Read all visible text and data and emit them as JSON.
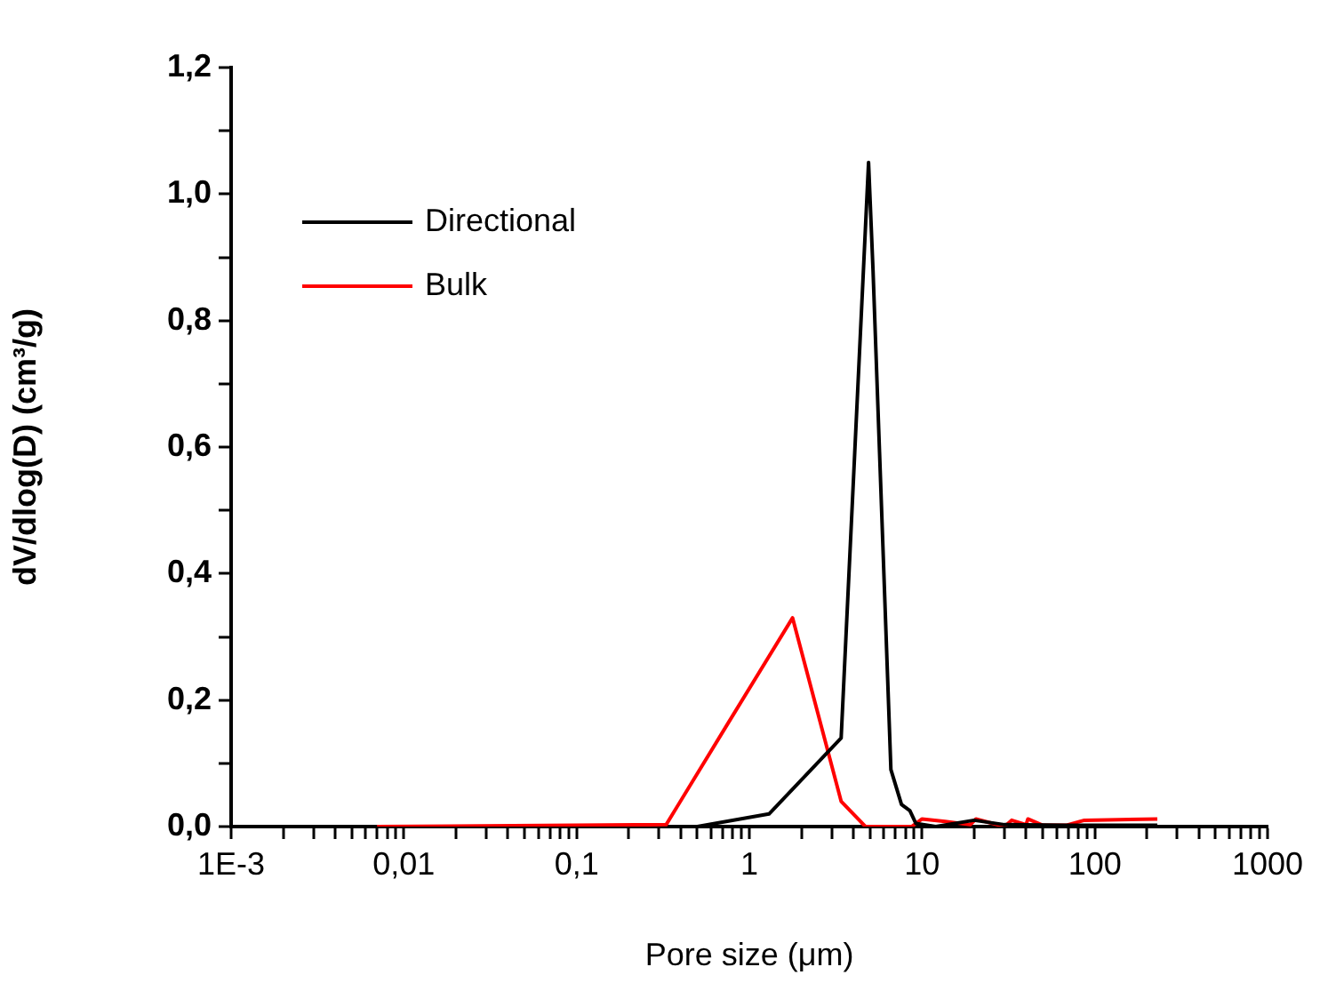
{
  "chart_data": {
    "type": "line",
    "xlabel": "Pore size (μm)",
    "ylabel": "dV/dlog(D) (cm³/g)",
    "log": "x",
    "legend": "top left",
    "grid": false,
    "marker": "none",
    "line_style": "solid",
    "xlim": [
      0.001,
      1000
    ],
    "xticks": [
      {
        "value": 0.001,
        "label": "1E-3"
      },
      {
        "value": 0.002,
        "label": null
      },
      {
        "value": 0.003,
        "label": null
      },
      {
        "value": 0.004,
        "label": null
      },
      {
        "value": 0.005,
        "label": null
      },
      {
        "value": 0.006,
        "label": null
      },
      {
        "value": 0.007,
        "label": null
      },
      {
        "value": 0.008,
        "label": null
      },
      {
        "value": 0.009,
        "label": null
      },
      {
        "value": 0.01,
        "label": "0,01"
      },
      {
        "value": 0.02,
        "label": null
      },
      {
        "value": 0.03,
        "label": null
      },
      {
        "value": 0.04,
        "label": null
      },
      {
        "value": 0.05,
        "label": null
      },
      {
        "value": 0.06,
        "label": null
      },
      {
        "value": 0.07,
        "label": null
      },
      {
        "value": 0.08,
        "label": null
      },
      {
        "value": 0.09,
        "label": null
      },
      {
        "value": 0.1,
        "label": "0,1"
      },
      {
        "value": 0.2,
        "label": null
      },
      {
        "value": 0.3,
        "label": null
      },
      {
        "value": 0.4,
        "label": null
      },
      {
        "value": 0.5,
        "label": null
      },
      {
        "value": 0.6,
        "label": null
      },
      {
        "value": 0.7,
        "label": null
      },
      {
        "value": 0.8,
        "label": null
      },
      {
        "value": 0.9,
        "label": null
      },
      1,
      {
        "value": 2,
        "label": null
      },
      {
        "value": 3,
        "label": null
      },
      {
        "value": 4,
        "label": null
      },
      {
        "value": 5,
        "label": null
      },
      {
        "value": 6,
        "label": null
      },
      {
        "value": 7,
        "label": null
      },
      {
        "value": 8,
        "label": null
      },
      {
        "value": 9,
        "label": null
      },
      10,
      {
        "value": 20,
        "label": null
      },
      {
        "value": 30,
        "label": null
      },
      {
        "value": 40,
        "label": null
      },
      {
        "value": 50,
        "label": null
      },
      {
        "value": 60,
        "label": null
      },
      {
        "value": 70,
        "label": null
      },
      {
        "value": 80,
        "label": null
      },
      {
        "value": 90,
        "label": null
      },
      100,
      {
        "value": 200,
        "label": null
      },
      {
        "value": 300,
        "label": null
      },
      {
        "value": 400,
        "label": null
      },
      {
        "value": 500,
        "label": null
      },
      {
        "value": 600,
        "label": null
      },
      {
        "value": 700,
        "label": null
      },
      {
        "value": 800,
        "label": null
      },
      {
        "value": 900,
        "label": null
      },
      1000
    ],
    "ylim": [
      0,
      1.2
    ],
    "yticks": [
      {
        "value": 0,
        "label": "0,0"
      },
      {
        "value": 0.1,
        "label": null
      },
      {
        "value": 0.2,
        "label": "0,2"
      },
      {
        "value": 0.3,
        "label": null
      },
      {
        "value": 0.4,
        "label": "0,4"
      },
      {
        "value": 0.5,
        "label": null
      },
      {
        "value": 0.6,
        "label": "0,6"
      },
      {
        "value": 0.7,
        "label": null
      },
      {
        "value": 0.8,
        "label": "0,8"
      },
      {
        "value": 0.9,
        "label": null
      },
      {
        "value": 1,
        "label": "1,0"
      },
      {
        "value": 1.1,
        "label": null
      },
      {
        "value": 1.2,
        "label": "1,2"
      }
    ],
    "series": [
      {
        "name": "Directional",
        "color": "#000000",
        "x": [
          0.5,
          1.3,
          3.4,
          4.9,
          5.2,
          6.6,
          7.6,
          8.5,
          9.2,
          12,
          20,
          30,
          68,
          230
        ],
        "values": [
          0,
          0.02,
          0.14,
          1.05,
          0.88,
          0.09,
          0.035,
          0.025,
          0.005,
          0,
          0.01,
          0.003,
          0.002,
          0.002
        ]
      },
      {
        "name": "Bulk",
        "color": "#ff0000",
        "x": [
          0.007,
          0.33,
          0.74,
          1.78,
          3.4,
          4.7,
          8.7,
          10,
          13.6,
          19,
          20.5,
          30,
          33,
          40,
          41,
          50,
          68,
          87,
          230
        ],
        "values": [
          0,
          0.003,
          0.16,
          0.33,
          0.04,
          0,
          0,
          0.012,
          0.008,
          0.003,
          0.012,
          0,
          0.01,
          0.003,
          0.012,
          0.002,
          0.002,
          0.01,
          0.012
        ]
      }
    ]
  }
}
